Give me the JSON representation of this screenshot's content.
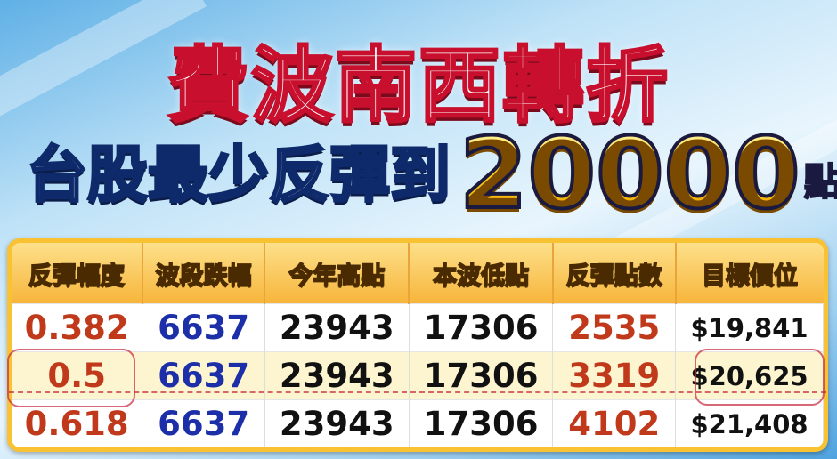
{
  "title": "費波南西轉折",
  "subtitle": {
    "prefix": "台股最少反彈到",
    "number": "20000",
    "unit": "點"
  },
  "table": {
    "headers": [
      "反彈幅度",
      "波段跌幅",
      "今年高點",
      "本波低點",
      "反彈點數",
      "目標價位"
    ],
    "rows": [
      [
        "0.382",
        "6637",
        "23943",
        "17306",
        "2535",
        "$19,841"
      ],
      [
        "0.5",
        "6637",
        "23943",
        "17306",
        "3319",
        "$20,625"
      ],
      [
        "0.618",
        "6637",
        "23943",
        "17306",
        "4102",
        "$21,408"
      ]
    ],
    "highlighted_row": 1
  },
  "colors": {
    "ratio": "#c0391b",
    "drop": "#1c2fa8",
    "points": "#c0391b",
    "header": "#f7b53b",
    "highlight": "#fdf5cf"
  }
}
